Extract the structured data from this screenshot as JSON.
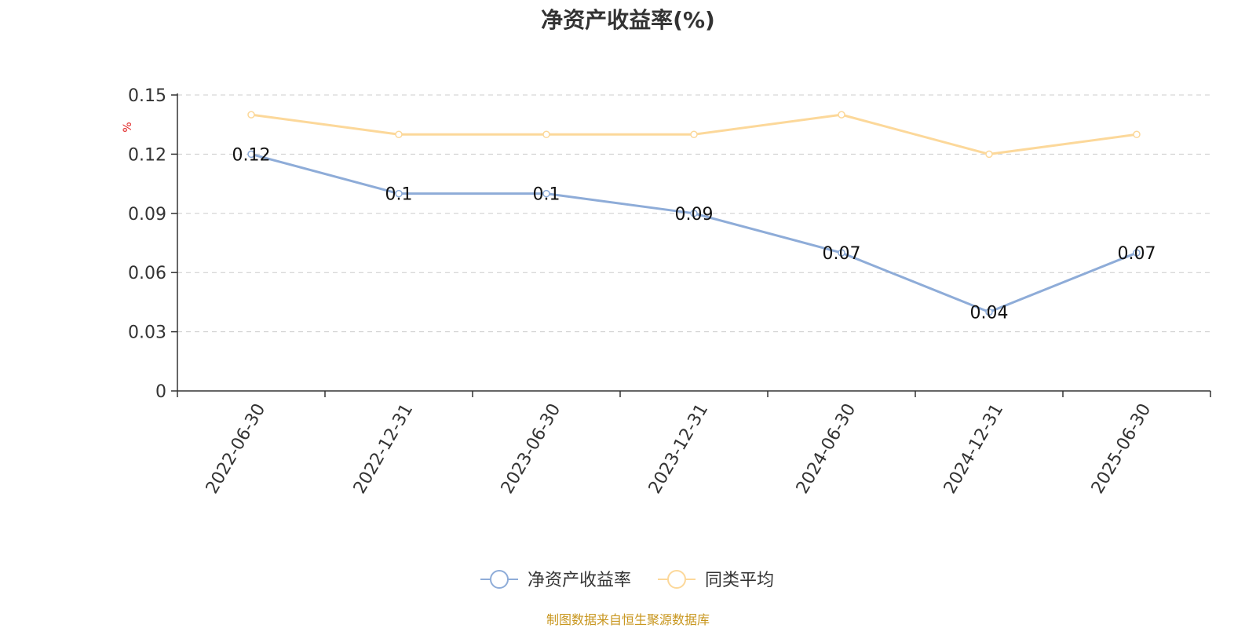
{
  "chart_data": {
    "type": "line",
    "title": "净资产收益率(%)",
    "ylabel": "%",
    "xlabel": "",
    "categories": [
      "2022-06-30",
      "2022-12-31",
      "2023-06-30",
      "2023-12-31",
      "2024-06-30",
      "2024-12-31",
      "2025-06-30"
    ],
    "series": [
      {
        "name": "净资产收益率",
        "values": [
          0.12,
          0.1,
          0.1,
          0.09,
          0.07,
          0.04,
          0.07
        ],
        "color": "#8eacd8",
        "data_labels": [
          "0.12",
          "0.1",
          "0.1",
          "0.09",
          "0.07",
          "0.04",
          "0.07"
        ]
      },
      {
        "name": "同类平均",
        "values": [
          0.14,
          0.13,
          0.13,
          0.13,
          0.14,
          0.12,
          0.13
        ],
        "color": "#fcd89a"
      }
    ],
    "ylim": [
      0,
      0.15
    ],
    "yticks": [
      "0",
      "0.03",
      "0.06",
      "0.09",
      "0.12",
      "0.15"
    ],
    "grid": true,
    "legend_position": "bottom-center"
  },
  "source_note": "制图数据来自恒生聚源数据库"
}
